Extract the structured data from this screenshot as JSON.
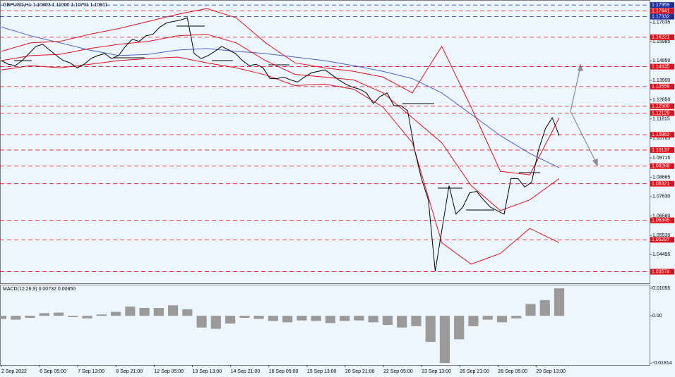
{
  "chart_data": [
    {
      "type": "line",
      "title": "GBPUSD,H1  1.10803 1.11000 1.10791 1.10911",
      "ylim": [
        1.0295,
        1.1804
      ],
      "yticks": [
        1.17035,
        1.15985,
        {
          "value": 1.1495,
          "label": "1.14950"
        },
        {
          "value": 1.139,
          "label": "1.13900"
        },
        {
          "value": 1.1285,
          "label": "1.12850"
        },
        1.11815,
        1.10765,
        1.09715,
        1.08665,
        {
          "value": 1.0763,
          "label": "1.07630"
        },
        {
          "value": 1.0658,
          "label": "1.06580"
        },
        {
          "value": 1.0553,
          "label": "1.05530"
        },
        1.04495
      ],
      "levels": [
        1.17959,
        1.17641,
        1.17332,
        1.16221,
        1.14635,
        1.13559,
        {
          "value": 1.125,
          "label": "1.12500"
        },
        1.12129,
        1.10963,
        1.10137,
        1.09269,
        1.08321,
        1.06345,
        1.05297,
        1.03574
      ],
      "level_colors": [
        "#1c2fa0",
        "#e0101a",
        "#1c2fa0",
        "#e0101a",
        "#e0101a",
        "#e0101a",
        "#e0101a",
        "#e0101a",
        "#e0101a",
        "#e0101a",
        "#e0101a",
        "#e0101a",
        "#e0101a",
        "#e0101a",
        "#e0101a"
      ],
      "x_labels": [
        "2 Sep 2022",
        "6 Sep 05:00",
        "7 Sep 13:00",
        "8 Sep 21:00",
        "12 Sep 05:00",
        "13 Sep 13:00",
        "14 Sep 21:00",
        "16 Sep 05:00",
        "19 Sep 13:00",
        "20 Sep 21:00",
        "22 Sep 05:00",
        "23 Sep 13:00",
        "26 Sep 21:00",
        "28 Sep 05:00",
        "29 Sep 13:00"
      ],
      "series": [
        {
          "color": "#4a5fd0",
          "values": [
            1.1677,
            1.163,
            1.1592,
            1.1553,
            1.1523,
            1.153,
            1.1553,
            1.1561,
            1.1546,
            1.1534,
            1.1515,
            1.1496,
            1.1469,
            1.1438,
            1.1399,
            1.1322,
            1.1207,
            1.1091,
            1.0995,
            1.0918
          ]
        },
        {
          "color": "#e0101a",
          "values": [
            1.1546,
            1.1592,
            1.16,
            1.1638,
            1.1669,
            1.1707,
            1.1746,
            1.1777,
            1.1727,
            1.1592,
            1.1484,
            1.1457,
            1.1438,
            1.1407,
            1.1322,
            1.1573,
            1.1245,
            1.0899,
            1.088,
            1.1188
          ]
        },
        {
          "color": "#e0101a",
          "values": [
            1.1496,
            1.1523,
            1.153,
            1.1561,
            1.1584,
            1.16,
            1.163,
            1.1638,
            1.1592,
            1.1496,
            1.1422,
            1.1407,
            1.1392,
            1.1322,
            1.1188,
            1.1053,
            1.0822,
            1.0687,
            1.0745,
            1.086
          ]
        },
        {
          "color": "#e0101a",
          "values": [
            1.1446,
            1.1469,
            1.1457,
            1.1476,
            1.1496,
            1.1507,
            1.1515,
            1.1484,
            1.1457,
            1.1419,
            1.1361,
            1.1369,
            1.1342,
            1.1245,
            1.1053,
            1.0514,
            1.0398,
            1.0456,
            1.0591,
            1.0514
          ]
        },
        {
          "color": "#000000",
          "values": [
            1.1496,
            1.1476,
            1.1469,
            1.1496,
            1.1534,
            1.1573,
            1.1584,
            1.1553,
            1.1523,
            1.1496,
            1.1484,
            1.1457,
            1.1476,
            1.1507,
            1.1523,
            1.1534,
            1.1507,
            1.1523,
            1.1573,
            1.1611,
            1.16,
            1.163,
            1.1638,
            1.1677,
            1.17,
            1.1707,
            1.1715,
            1.1727,
            1.1534,
            1.1507,
            1.1523,
            1.1546,
            1.1573,
            1.1553,
            1.1534,
            1.1496,
            1.1469,
            1.1476,
            1.1457,
            1.1399,
            1.1399,
            1.1407,
            1.1392,
            1.138,
            1.1407,
            1.143,
            1.1438,
            1.1446,
            1.1419,
            1.1392,
            1.1369,
            1.1353,
            1.1342,
            1.1322,
            1.1265,
            1.1303,
            1.1322,
            1.1253,
            1.1253,
            1.1226,
            1.1014,
            1.086,
            1.0745,
            1.036,
            1.0591,
            1.0822,
            1.0668,
            1.0706,
            1.0783,
            1.0791,
            1.0745,
            1.0706,
            1.0687,
            1.0668,
            1.086,
            1.086,
            1.0814,
            1.0841,
            1.1014,
            1.113,
            1.1188,
            1.1091
          ]
        }
      ]
    },
    {
      "type": "bar",
      "title": "MACD(12,26,9) 0.00732 0.00850",
      "color": "#9a9a9a",
      "ylim": [
        -0.0221,
        0.0119
      ],
      "yticks": [
        0.01055,
        {
          "value": 0,
          "label": "0.00"
        },
        -0.01814
      ],
      "values": [
        -0.0012,
        -0.0015,
        -0.0008,
        0.001,
        0.0012,
        -0.0005,
        -0.001,
        0.0005,
        0.0015,
        0.0035,
        0.003,
        0.003,
        0.004,
        0.0025,
        -0.0045,
        -0.005,
        -0.003,
        -0.0008,
        -0.0012,
        -0.002,
        -0.0025,
        -0.0018,
        -0.002,
        -0.0028,
        -0.002,
        -0.0018,
        -0.0025,
        -0.0035,
        -0.0045,
        -0.004,
        -0.01,
        -0.0181,
        -0.009,
        -0.004,
        -0.0015,
        -0.0025,
        -0.001,
        0.0045,
        0.006,
        0.0105
      ]
    }
  ]
}
